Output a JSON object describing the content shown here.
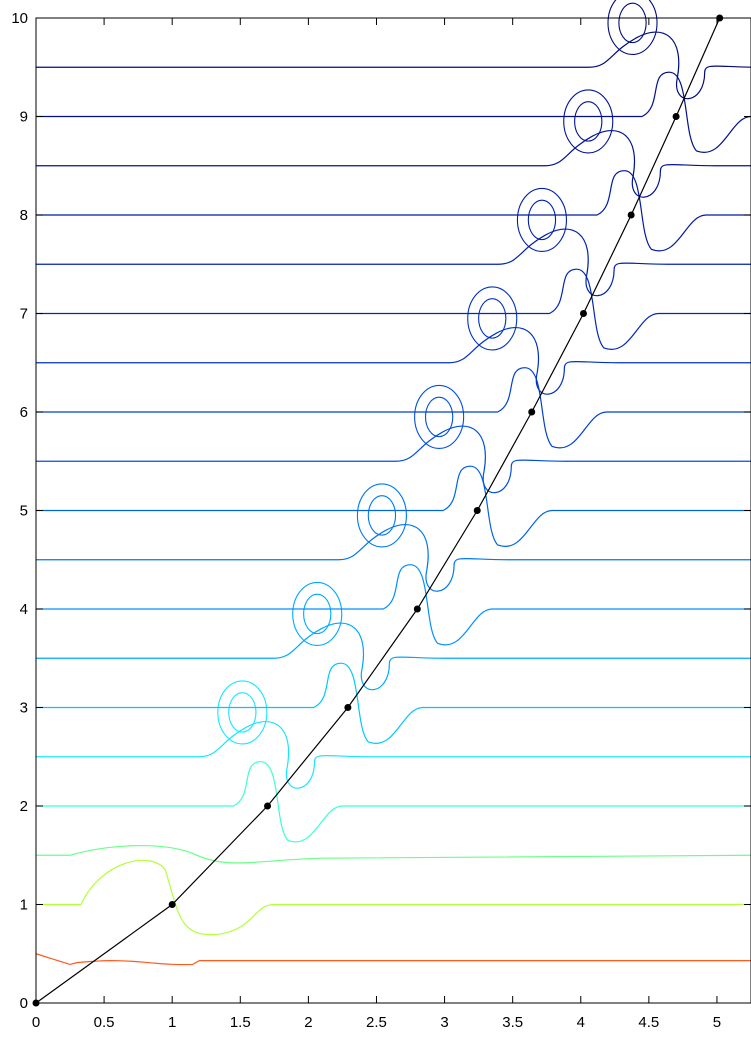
{
  "chart_data": {
    "type": "line",
    "title": "",
    "xlabel": "",
    "ylabel": "",
    "xlim": [
      0,
      5.25
    ],
    "ylim": [
      0,
      10
    ],
    "grid": false,
    "x_ticks": [
      "0",
      "0.5",
      "1",
      "1.5",
      "2",
      "2.5",
      "3",
      "3.5",
      "4",
      "4.5",
      "5"
    ],
    "y_ticks": [
      "0",
      "1",
      "2",
      "3",
      "4",
      "5",
      "6",
      "7",
      "8",
      "9",
      "10"
    ],
    "x_tick_values": [
      0,
      0.5,
      1,
      1.5,
      2,
      2.5,
      3,
      3.5,
      4,
      4.5,
      5
    ],
    "y_tick_values": [
      0,
      1,
      2,
      3,
      4,
      5,
      6,
      7,
      8,
      9,
      10
    ],
    "contour_levels": [
      {
        "y": 0.43,
        "color": "#ff5a1e",
        "type": "wavy-base"
      },
      {
        "y": 1.0,
        "color": "#b4ff3c",
        "tx": 0.38,
        "rise": 0.45,
        "side": "right",
        "loop": false
      },
      {
        "y": 1.5,
        "color": "#6aff88",
        "tx": 1.1,
        "rise": 0.0,
        "side": "left",
        "loop": false
      },
      {
        "y": 2.0,
        "color": "#3cffd2",
        "tx": 2.15,
        "rise": 0.5,
        "side": "right",
        "loop": true
      },
      {
        "y": 2.5,
        "color": "#19e6ff",
        "tx": 1.7,
        "rise": 0.5,
        "side": "left",
        "loop": true
      },
      {
        "y": 3.0,
        "color": "#00c8ff",
        "tx": 2.7,
        "rise": 0.5,
        "side": "right",
        "loop": true
      },
      {
        "y": 3.5,
        "color": "#00a8ff",
        "tx": 2.3,
        "rise": 0.5,
        "side": "left",
        "loop": true
      },
      {
        "y": 4.0,
        "color": "#0090ff",
        "tx": 3.2,
        "rise": 0.5,
        "side": "right",
        "loop": true
      },
      {
        "y": 4.5,
        "color": "#0078f0",
        "tx": 2.85,
        "rise": 0.5,
        "side": "left",
        "loop": true
      },
      {
        "y": 5.0,
        "color": "#0064e6",
        "tx": 3.65,
        "rise": 0.5,
        "side": "right",
        "loop": true
      },
      {
        "y": 5.5,
        "color": "#0050dc",
        "tx": 3.3,
        "rise": 0.5,
        "side": "left",
        "loop": true
      },
      {
        "y": 6.0,
        "color": "#0040d0",
        "tx": 4.1,
        "rise": 0.5,
        "side": "right",
        "loop": true
      },
      {
        "y": 6.5,
        "color": "#0032c4",
        "tx": 3.7,
        "rise": 0.5,
        "side": "left",
        "loop": true
      },
      {
        "y": 7.0,
        "color": "#0028b8",
        "tx": 4.45,
        "rise": 0.5,
        "side": "right",
        "loop": true
      },
      {
        "y": 7.5,
        "color": "#0020ac",
        "tx": 4.05,
        "rise": 0.5,
        "side": "left",
        "loop": true
      },
      {
        "y": 8.0,
        "color": "#001aa0",
        "tx": 4.85,
        "rise": 0.5,
        "side": "right",
        "loop": true
      },
      {
        "y": 8.5,
        "color": "#001494",
        "tx": 4.4,
        "rise": 0.5,
        "side": "left",
        "loop": true
      },
      {
        "y": 9.0,
        "color": "#001088",
        "tx": 5.15,
        "rise": 0.5,
        "side": "right",
        "loop": true
      },
      {
        "y": 9.5,
        "color": "#000c7c",
        "tx": 4.75,
        "rise": 0.5,
        "side": "left",
        "loop": true
      }
    ],
    "path": {
      "color": "#000000",
      "points": [
        {
          "x": 0,
          "y": 0
        },
        {
          "x": 1.0,
          "y": 1
        },
        {
          "x": 1.7,
          "y": 2
        },
        {
          "x": 2.29,
          "y": 3
        },
        {
          "x": 2.8,
          "y": 4
        },
        {
          "x": 3.24,
          "y": 5
        },
        {
          "x": 3.64,
          "y": 6
        },
        {
          "x": 4.02,
          "y": 7
        },
        {
          "x": 4.37,
          "y": 8
        },
        {
          "x": 4.7,
          "y": 9
        },
        {
          "x": 5.02,
          "y": 10
        }
      ]
    }
  }
}
